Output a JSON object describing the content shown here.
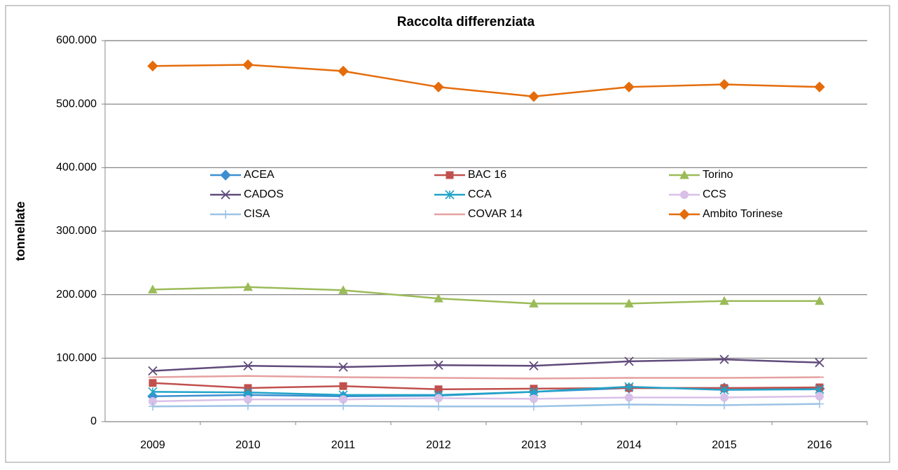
{
  "chart_data": {
    "type": "line",
    "title": "Raccolta differenziata",
    "y_label": "tonnellate",
    "categories": [
      "2009",
      "2010",
      "2011",
      "2012",
      "2013",
      "2014",
      "2015",
      "2016"
    ],
    "ylim": [
      0,
      600000
    ],
    "yticks": [
      0,
      {
        "value": 100000,
        "label": "100.000"
      },
      {
        "value": 200000,
        "label": "200.000"
      },
      {
        "value": 300000,
        "label": "300.000"
      },
      {
        "value": 400000,
        "label": "400.000"
      },
      {
        "value": 500000,
        "label": "500.000"
      },
      {
        "value": 600000,
        "label": "600.000"
      }
    ],
    "grid": true,
    "legend": "center",
    "series": [
      {
        "name": "ACEA",
        "color": "#3d8fd0",
        "marker": "diamond",
        "values": [
          40000,
          42000,
          40000,
          41000,
          47000,
          53000,
          53000,
          52000
        ]
      },
      {
        "name": "BAC 16",
        "color": "#c0504d",
        "marker": "square",
        "values": [
          61000,
          53000,
          56000,
          51000,
          52000,
          53000,
          53000,
          54000
        ]
      },
      {
        "name": "Torino",
        "color": "#9bbb59",
        "marker": "triangle",
        "values": [
          208000,
          212000,
          207000,
          194000,
          186000,
          186000,
          190000,
          190000
        ]
      },
      {
        "name": "CADOS",
        "color": "#604a7b",
        "marker": "x",
        "values": [
          80000,
          88000,
          86000,
          89000,
          88000,
          95000,
          98000,
          93000
        ]
      },
      {
        "name": "CCA",
        "color": "#21a3c8",
        "marker": "star",
        "values": [
          47000,
          46000,
          42000,
          42000,
          47000,
          55000,
          50000,
          51000
        ]
      },
      {
        "name": "CCS",
        "color": "#d9c0e8",
        "marker": "circle",
        "values": [
          32000,
          35000,
          35000,
          37000,
          36000,
          38000,
          38000,
          40000
        ]
      },
      {
        "name": "CISA",
        "color": "#9cc3e5",
        "marker": "plus",
        "values": [
          24000,
          25000,
          25000,
          24000,
          24000,
          27000,
          26000,
          28000
        ]
      },
      {
        "name": "COVAR 14",
        "color": "#e6a0a0",
        "marker": "dash",
        "values": [
          70000,
          72000,
          70000,
          69000,
          68000,
          69000,
          69000,
          70000
        ]
      },
      {
        "name": "Ambito Torinese",
        "color": "#e46c0a",
        "marker": "diamond",
        "values": [
          560000,
          562000,
          552000,
          527000,
          512000,
          527000,
          531000,
          527000
        ]
      }
    ]
  }
}
